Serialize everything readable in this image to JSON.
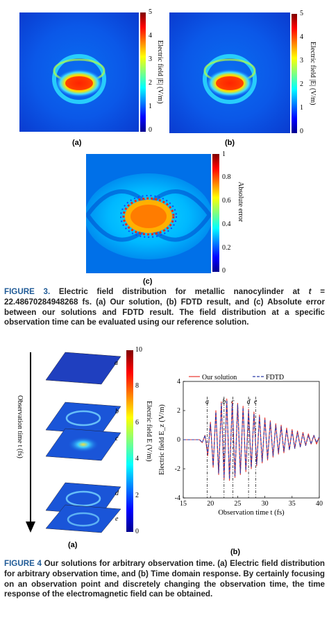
{
  "figure3": {
    "panel_a": {
      "label": "(a)",
      "colorbar_label": "Electric field |E| (V/m)",
      "ticks": [
        "5",
        "4",
        "3",
        "2",
        "1",
        "0"
      ]
    },
    "panel_b": {
      "label": "(b)",
      "colorbar_label": "Electric field |E| (V/m)",
      "ticks": [
        "5",
        "4",
        "3",
        "2",
        "1",
        "0"
      ]
    },
    "panel_c": {
      "label": "(c)",
      "colorbar_label": "Absolute error",
      "ticks": [
        "1",
        "0.8",
        "0.6",
        "0.4",
        "0.2",
        "0"
      ]
    },
    "caption": {
      "head": "FIGURE 3.",
      "text_1": " Electric field distribution for metallic nanocylinder at ",
      "t_sym": "t",
      "text_2": " = 22.48670284948268 fs. (a) Our solution, (b) FDTD result, and (c) Absolute error between our solutions and FDTD result. The field distribution at a specific observation time can be evaluated using our reference solution."
    }
  },
  "figure4": {
    "panel_a": {
      "label": "(a)",
      "axis_label": "Observation time t (fs)",
      "slice_labels": [
        "a",
        "b",
        "c",
        "d",
        "e"
      ],
      "colorbar_label": "Electric field E (V/m)",
      "ticks": [
        "10",
        "8",
        "6",
        "4",
        "2",
        "0"
      ]
    },
    "panel_b": {
      "label": "(b)",
      "legend": {
        "ours": "Our solution",
        "fdtd": "FDTD"
      },
      "ylabel": "Electric field E_z (V/m)",
      "xlabel": "Observation time t (fs)",
      "xticks": [
        "15",
        "20",
        "25",
        "30",
        "35",
        "40"
      ],
      "yticks": [
        "4",
        "2",
        "0",
        "-2",
        "-4"
      ],
      "markers": [
        "a",
        "b",
        "c",
        "d",
        "e"
      ]
    },
    "caption": {
      "head": "FIGURE 4",
      "text": " Our solutions for arbitrary observation time. (a) Electric field distribution for arbitrary observation time, and (b) Time domain response. By certainly focusing on an observation point and discretely changing the observation time, the time response of the electromagnetic field can be obtained."
    }
  },
  "colors": {
    "caption_head": "#1f5a96",
    "ours_line": "#e8332a",
    "fdtd_line": "#2b3aa8"
  },
  "chart_data": {
    "type": "line",
    "x": [
      15,
      16,
      17,
      17.5,
      18,
      18.5,
      19,
      19.5,
      20,
      20.5,
      21,
      21.5,
      22,
      22.5,
      23,
      23.5,
      24,
      24.5,
      25,
      25.5,
      26,
      26.5,
      27,
      27.5,
      28,
      28.5,
      29,
      29.5,
      30,
      30.5,
      31,
      31.5,
      32,
      32.5,
      33,
      33.5,
      34,
      34.5,
      35,
      35.5,
      36,
      36.5,
      37,
      37.5,
      38,
      38.5,
      39,
      39.5,
      40
    ],
    "series": [
      {
        "name": "Our solution",
        "values": [
          0,
          0,
          0,
          0,
          0,
          -0.2,
          0.3,
          -1.1,
          1.2,
          -1.9,
          2.0,
          -2.4,
          2.6,
          -2.7,
          2.8,
          -2.8,
          2.6,
          -2.6,
          2.5,
          -2.4,
          2.3,
          -2.2,
          2.1,
          -2.0,
          1.9,
          -1.8,
          1.7,
          -1.6,
          1.5,
          -1.4,
          1.3,
          -1.2,
          1.1,
          -1.0,
          1.0,
          -0.9,
          0.8,
          -0.7,
          0.7,
          -0.6,
          0.6,
          -0.5,
          0.5,
          -0.4,
          0.4,
          -0.3,
          0.3,
          -0.3,
          0.2
        ]
      },
      {
        "name": "FDTD",
        "values": [
          0,
          0,
          0,
          0,
          0,
          -0.2,
          0.3,
          -1.0,
          1.1,
          -1.8,
          1.9,
          -2.3,
          2.5,
          -2.6,
          2.7,
          -2.7,
          2.5,
          -2.5,
          2.4,
          -2.3,
          2.2,
          -2.1,
          2.0,
          -1.9,
          1.8,
          -1.7,
          1.6,
          -1.5,
          1.4,
          -1.3,
          1.2,
          -1.1,
          1.0,
          -0.9,
          0.9,
          -0.8,
          0.7,
          -0.7,
          0.6,
          -0.6,
          0.5,
          -0.5,
          0.4,
          -0.4,
          0.3,
          -0.3,
          0.3,
          -0.2,
          0.2
        ]
      }
    ],
    "vlines": [
      {
        "label": "a",
        "x": 19.4
      },
      {
        "label": "b",
        "x": 22.5
      },
      {
        "label": "c",
        "x": 24.1
      },
      {
        "label": "d",
        "x": 27.0
      },
      {
        "label": "e",
        "x": 28.3
      }
    ],
    "xlabel": "Observation time t (fs)",
    "ylabel": "Electric field E_z (V/m)",
    "xlim": [
      15,
      40
    ],
    "ylim": [
      -4,
      4
    ],
    "legend_position": "top"
  }
}
